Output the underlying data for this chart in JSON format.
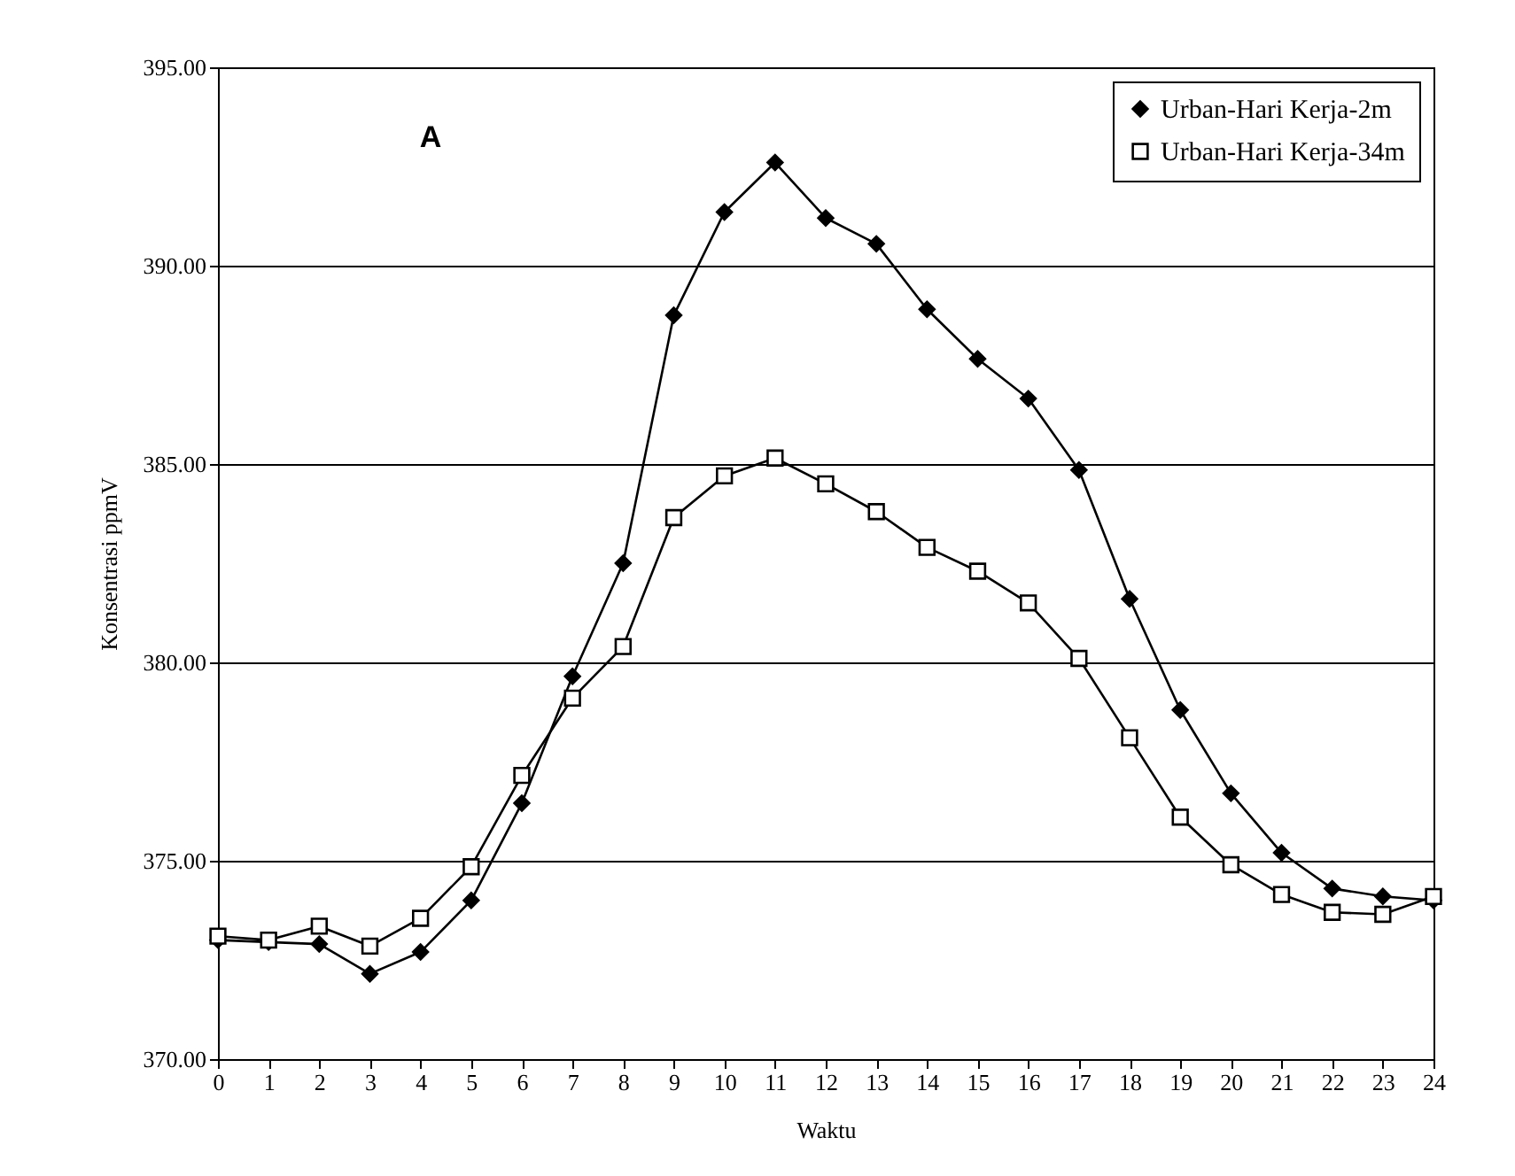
{
  "chart_data": {
    "type": "line",
    "xlabel": "Waktu",
    "ylabel": "Konsentrasi ppmV",
    "annotations": [
      "A"
    ],
    "x": [
      0,
      1,
      2,
      3,
      4,
      5,
      6,
      7,
      8,
      9,
      10,
      11,
      12,
      13,
      14,
      15,
      16,
      17,
      18,
      19,
      20,
      21,
      22,
      23,
      24
    ],
    "series": [
      {
        "name": "Urban-Hari Kerja-2m",
        "color": "#000000",
        "marker": "diamond",
        "values": [
          373.0,
          372.95,
          372.9,
          372.15,
          372.7,
          374.0,
          376.45,
          379.65,
          382.5,
          388.75,
          391.35,
          392.6,
          391.2,
          390.55,
          388.9,
          387.65,
          386.65,
          384.85,
          381.6,
          378.8,
          376.7,
          375.2,
          374.3,
          374.1,
          374.0
        ]
      },
      {
        "name": "Urban-Hari Kerja-34m",
        "color": "#000000",
        "marker": "square",
        "values": [
          373.1,
          373.0,
          373.35,
          372.85,
          373.55,
          374.85,
          377.15,
          379.1,
          380.4,
          383.65,
          384.7,
          385.15,
          384.5,
          383.8,
          382.9,
          382.3,
          381.5,
          380.1,
          378.1,
          376.1,
          374.9,
          374.15,
          373.7,
          373.65,
          374.1
        ]
      }
    ],
    "xlim": [
      0,
      24
    ],
    "xticks": [
      0,
      1,
      2,
      3,
      4,
      5,
      6,
      7,
      8,
      9,
      10,
      11,
      12,
      13,
      14,
      15,
      16,
      17,
      18,
      19,
      20,
      21,
      22,
      23,
      24
    ],
    "ylim": [
      370,
      395
    ],
    "yticks": [
      {
        "value": 370,
        "label": "370.00"
      },
      {
        "value": 375,
        "label": "375.00"
      },
      {
        "value": 380,
        "label": "380.00"
      },
      {
        "value": 385,
        "label": "385.00"
      },
      {
        "value": 390,
        "label": "390.00"
      },
      {
        "value": 395,
        "label": "395.00"
      }
    ],
    "grid": "y",
    "legend": "top right",
    "line_style": "solid"
  }
}
